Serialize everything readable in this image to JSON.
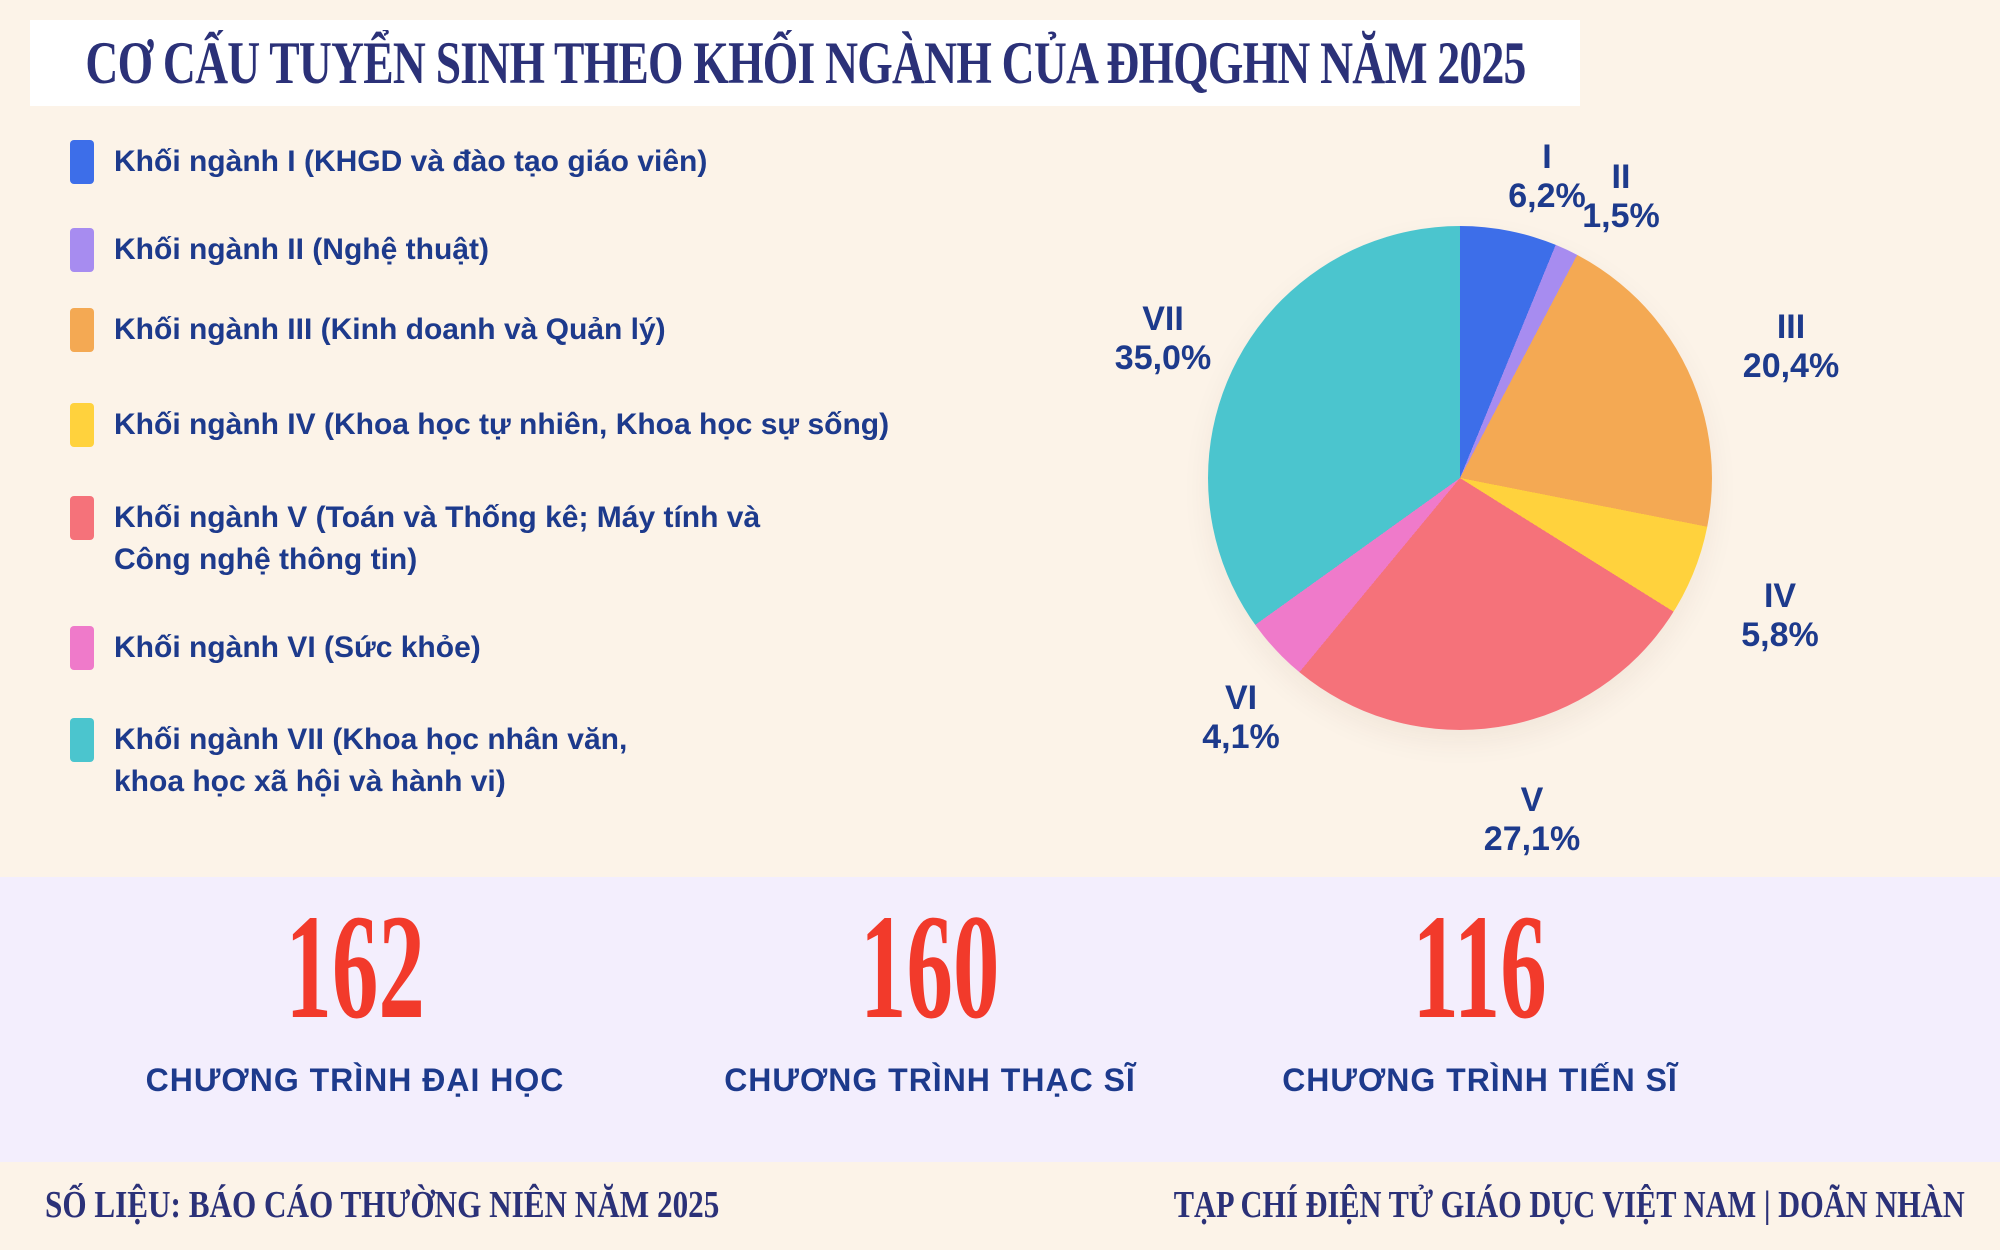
{
  "title": "CƠ CẤU TUYỂN SINH THEO KHỐI NGÀNH CỦA ĐHQGHN NĂM 2025",
  "chart_data": {
    "type": "pie",
    "title": "CƠ CẤU TUYỂN SINH THEO KHỐI NGÀNH CỦA ĐHQGHN NĂM 2025",
    "legend_position": "left",
    "start_angle_deg": 0,
    "direction": "clockwise",
    "slices": [
      {
        "roman": "I",
        "legend": "Khối ngành I (KHGD và đào tạo giáo viên)",
        "value": 6.2,
        "pct_label": "6,2%",
        "color": "#3d6ee9"
      },
      {
        "roman": "II",
        "legend": "Khối ngành II (Nghệ thuật)",
        "value": 1.5,
        "pct_label": "1,5%",
        "color": "#a78cf0"
      },
      {
        "roman": "III",
        "legend": "Khối ngành III (Kinh doanh và Quản lý)",
        "value": 20.4,
        "pct_label": "20,4%",
        "color": "#f4a953"
      },
      {
        "roman": "IV",
        "legend": "Khối ngành IV (Khoa học tự nhiên, Khoa học sự sống)",
        "value": 5.8,
        "pct_label": "5,8%",
        "color": "#ffd23d"
      },
      {
        "roman": "V",
        "legend": "Khối ngành V (Toán và Thống kê; Máy tính và\nCông nghệ thông tin)",
        "value": 27.1,
        "pct_label": "27,1%",
        "color": "#f5727a"
      },
      {
        "roman": "VI",
        "legend": "Khối ngành VI (Sức khỏe)",
        "value": 4.1,
        "pct_label": "4,1%",
        "color": "#ef7aca"
      },
      {
        "roman": "VII",
        "legend": "Khối ngành VII (Khoa học nhân văn,\nkhoa học xã hội và hành vi)",
        "value": 35.0,
        "pct_label": "35,0%",
        "color": "#4bc5ce"
      }
    ]
  },
  "stats": [
    {
      "value": "162",
      "label": "CHƯƠNG TRÌNH ĐẠI HỌC"
    },
    {
      "value": "160",
      "label": "CHƯƠNG TRÌNH THẠC SĨ"
    },
    {
      "value": "116",
      "label": "CHƯƠNG TRÌNH TIẾN SĨ"
    }
  ],
  "footer": {
    "source": "SỐ LIỆU: BÁO CÁO THƯỜNG NIÊN NĂM 2025",
    "credit": "TẠP CHÍ ĐIỆN TỬ GIÁO DỤC VIỆT NAM | DOÃN NHÀN"
  },
  "colors": {
    "background": "#fcf3e8",
    "title_band": "#ffffff",
    "title_text": "#2b3178",
    "body_text": "#1d3a8c",
    "stats_band": "#f3eefd",
    "stat_number": "#f23a2b"
  }
}
